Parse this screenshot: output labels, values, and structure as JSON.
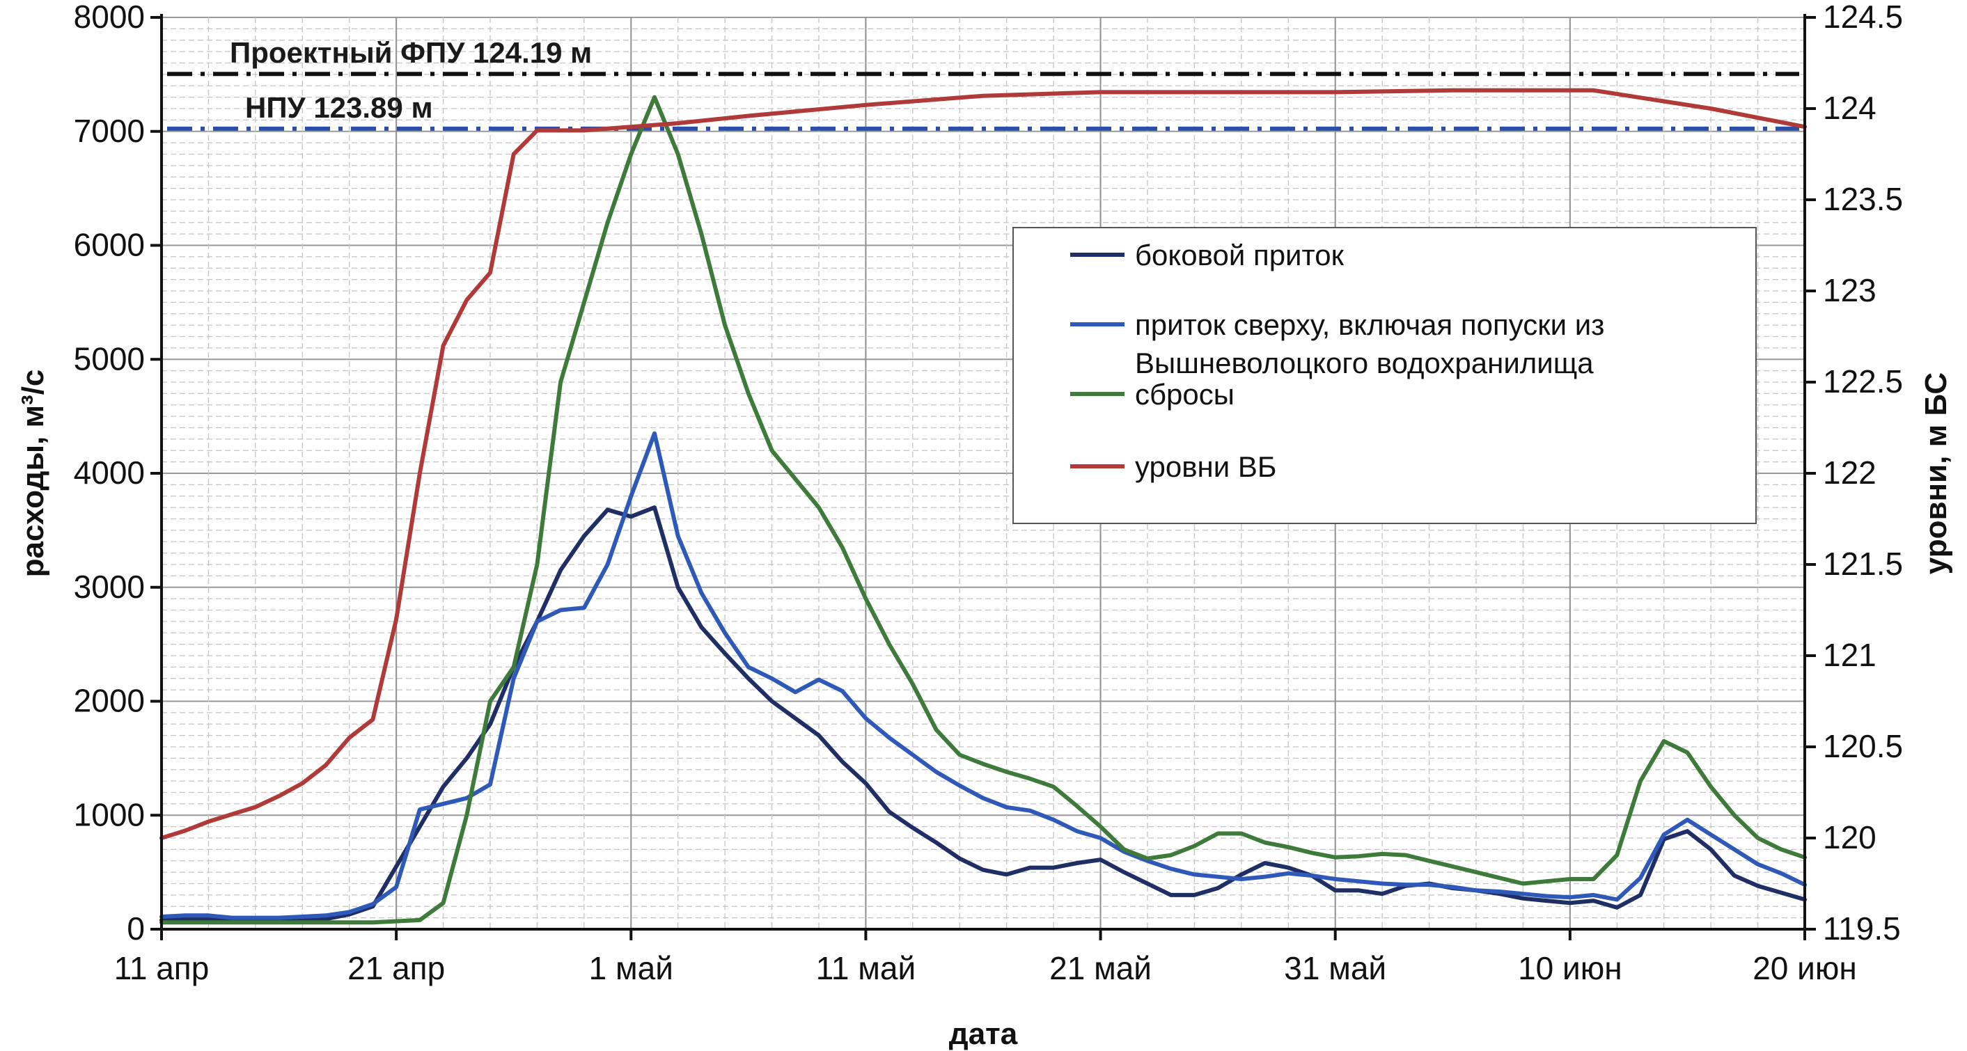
{
  "chart_data": {
    "type": "line",
    "x_axis": {
      "label": "дата",
      "range": [
        "2013-04-11",
        "2013-06-20"
      ],
      "tick_values": [
        "2013-04-11",
        "2013-04-21",
        "2013-05-01",
        "2013-05-11",
        "2013-05-21",
        "2013-05-31",
        "2013-06-10",
        "2013-06-20"
      ],
      "tick_labels": [
        "11 апр",
        "21 апр",
        "1 май",
        "11 май",
        "21 май",
        "31 май",
        "10 июн",
        "20 июн"
      ]
    },
    "y_left": {
      "label": "расходы, м³/с",
      "range": [
        0,
        8000
      ],
      "ticks": [
        0,
        1000,
        2000,
        3000,
        4000,
        5000,
        6000,
        7000,
        8000
      ]
    },
    "y_right": {
      "label": "уровни, м БС",
      "range": [
        119.5,
        124.5
      ],
      "ticks": [
        "119.5",
        "120",
        "120.5",
        "121",
        "121.5",
        "122",
        "122.5",
        "123",
        "123.5",
        "124",
        "124.5"
      ]
    },
    "grid": true,
    "legend_position": "right-center",
    "reference_lines": [
      {
        "label": "Проектный ФПУ 124.19 м",
        "value": 124.19,
        "axis": "right",
        "color": "#111111",
        "style": "dash-dot"
      },
      {
        "label": "НПУ 123.89 м",
        "value": 123.89,
        "axis": "right",
        "color": "#2b4fa8",
        "style": "dash-dot"
      }
    ],
    "series": [
      {
        "name": "боковой приток",
        "axis": "left",
        "color": "#1f2f66",
        "points": [
          [
            "2013-04-11",
            80
          ],
          [
            "2013-04-12",
            90
          ],
          [
            "2013-04-13",
            90
          ],
          [
            "2013-04-14",
            80
          ],
          [
            "2013-04-15",
            80
          ],
          [
            "2013-04-16",
            80
          ],
          [
            "2013-04-17",
            80
          ],
          [
            "2013-04-18",
            90
          ],
          [
            "2013-04-19",
            130
          ],
          [
            "2013-04-20",
            200
          ],
          [
            "2013-04-21",
            550
          ],
          [
            "2013-04-22",
            900
          ],
          [
            "2013-04-23",
            1250
          ],
          [
            "2013-04-24",
            1500
          ],
          [
            "2013-04-25",
            1800
          ],
          [
            "2013-04-26",
            2300
          ],
          [
            "2013-04-27",
            2700
          ],
          [
            "2013-04-28",
            3150
          ],
          [
            "2013-04-29",
            3450
          ],
          [
            "2013-04-30",
            3680
          ],
          [
            "2013-05-01",
            3620
          ],
          [
            "2013-05-02",
            3700
          ],
          [
            "2013-05-03",
            3000
          ],
          [
            "2013-05-04",
            2650
          ],
          [
            "2013-05-05",
            2420
          ],
          [
            "2013-05-06",
            2200
          ],
          [
            "2013-05-07",
            2000
          ],
          [
            "2013-05-08",
            1850
          ],
          [
            "2013-05-09",
            1700
          ],
          [
            "2013-05-10",
            1470
          ],
          [
            "2013-05-11",
            1280
          ],
          [
            "2013-05-12",
            1030
          ],
          [
            "2013-05-13",
            890
          ],
          [
            "2013-05-14",
            760
          ],
          [
            "2013-05-15",
            620
          ],
          [
            "2013-05-16",
            520
          ],
          [
            "2013-05-17",
            480
          ],
          [
            "2013-05-18",
            540
          ],
          [
            "2013-05-19",
            540
          ],
          [
            "2013-05-20",
            580
          ],
          [
            "2013-05-21",
            610
          ],
          [
            "2013-05-22",
            500
          ],
          [
            "2013-05-23",
            400
          ],
          [
            "2013-05-24",
            300
          ],
          [
            "2013-05-25",
            300
          ],
          [
            "2013-05-26",
            360
          ],
          [
            "2013-05-27",
            480
          ],
          [
            "2013-05-28",
            580
          ],
          [
            "2013-05-29",
            540
          ],
          [
            "2013-05-30",
            470
          ],
          [
            "2013-05-31",
            340
          ],
          [
            "2013-06-01",
            340
          ],
          [
            "2013-06-02",
            310
          ],
          [
            "2013-06-03",
            380
          ],
          [
            "2013-06-04",
            400
          ],
          [
            "2013-06-05",
            360
          ],
          [
            "2013-06-06",
            340
          ],
          [
            "2013-06-07",
            310
          ],
          [
            "2013-06-08",
            270
          ],
          [
            "2013-06-09",
            250
          ],
          [
            "2013-06-10",
            230
          ],
          [
            "2013-06-11",
            250
          ],
          [
            "2013-06-12",
            190
          ],
          [
            "2013-06-13",
            300
          ],
          [
            "2013-06-14",
            790
          ],
          [
            "2013-06-15",
            860
          ],
          [
            "2013-06-16",
            700
          ],
          [
            "2013-06-17",
            470
          ],
          [
            "2013-06-18",
            380
          ],
          [
            "2013-06-19",
            320
          ],
          [
            "2013-06-20",
            260
          ]
        ]
      },
      {
        "name": "приток сверху, включая попуски из Вышневолоцкого водохранилища",
        "axis": "left",
        "color": "#2f59b8",
        "points": [
          [
            "2013-04-11",
            110
          ],
          [
            "2013-04-12",
            120
          ],
          [
            "2013-04-13",
            120
          ],
          [
            "2013-04-14",
            100
          ],
          [
            "2013-04-15",
            100
          ],
          [
            "2013-04-16",
            100
          ],
          [
            "2013-04-17",
            110
          ],
          [
            "2013-04-18",
            120
          ],
          [
            "2013-04-19",
            150
          ],
          [
            "2013-04-20",
            220
          ],
          [
            "2013-04-21",
            370
          ],
          [
            "2013-04-22",
            1050
          ],
          [
            "2013-04-23",
            1100
          ],
          [
            "2013-04-24",
            1150
          ],
          [
            "2013-04-25",
            1270
          ],
          [
            "2013-04-26",
            2200
          ],
          [
            "2013-04-27",
            2700
          ],
          [
            "2013-04-28",
            2800
          ],
          [
            "2013-04-29",
            2820
          ],
          [
            "2013-04-30",
            3200
          ],
          [
            "2013-05-01",
            3800
          ],
          [
            "2013-05-02",
            4350
          ],
          [
            "2013-05-03",
            3450
          ],
          [
            "2013-05-04",
            2950
          ],
          [
            "2013-05-05",
            2600
          ],
          [
            "2013-05-06",
            2300
          ],
          [
            "2013-05-07",
            2200
          ],
          [
            "2013-05-08",
            2080
          ],
          [
            "2013-05-09",
            2190
          ],
          [
            "2013-05-10",
            2090
          ],
          [
            "2013-05-11",
            1850
          ],
          [
            "2013-05-12",
            1680
          ],
          [
            "2013-05-13",
            1530
          ],
          [
            "2013-05-14",
            1380
          ],
          [
            "2013-05-15",
            1260
          ],
          [
            "2013-05-16",
            1150
          ],
          [
            "2013-05-17",
            1070
          ],
          [
            "2013-05-18",
            1040
          ],
          [
            "2013-05-19",
            960
          ],
          [
            "2013-05-20",
            860
          ],
          [
            "2013-05-21",
            800
          ],
          [
            "2013-05-22",
            680
          ],
          [
            "2013-05-23",
            600
          ],
          [
            "2013-05-24",
            530
          ],
          [
            "2013-05-25",
            480
          ],
          [
            "2013-05-26",
            460
          ],
          [
            "2013-05-27",
            440
          ],
          [
            "2013-05-28",
            460
          ],
          [
            "2013-05-29",
            490
          ],
          [
            "2013-05-30",
            470
          ],
          [
            "2013-05-31",
            440
          ],
          [
            "2013-06-01",
            420
          ],
          [
            "2013-06-02",
            400
          ],
          [
            "2013-06-03",
            390
          ],
          [
            "2013-06-04",
            390
          ],
          [
            "2013-06-05",
            370
          ],
          [
            "2013-06-06",
            340
          ],
          [
            "2013-06-07",
            330
          ],
          [
            "2013-06-08",
            310
          ],
          [
            "2013-06-09",
            290
          ],
          [
            "2013-06-10",
            280
          ],
          [
            "2013-06-11",
            300
          ],
          [
            "2013-06-12",
            260
          ],
          [
            "2013-06-13",
            450
          ],
          [
            "2013-06-14",
            830
          ],
          [
            "2013-06-15",
            960
          ],
          [
            "2013-06-16",
            830
          ],
          [
            "2013-06-17",
            700
          ],
          [
            "2013-06-18",
            570
          ],
          [
            "2013-06-19",
            490
          ],
          [
            "2013-06-20",
            390
          ]
        ]
      },
      {
        "name": "сбросы",
        "axis": "left",
        "color": "#3e7a3a",
        "points": [
          [
            "2013-04-11",
            60
          ],
          [
            "2013-04-15",
            60
          ],
          [
            "2013-04-20",
            60
          ],
          [
            "2013-04-22",
            80
          ],
          [
            "2013-04-23",
            230
          ],
          [
            "2013-04-24",
            1000
          ],
          [
            "2013-04-25",
            2000
          ],
          [
            "2013-04-26",
            2300
          ],
          [
            "2013-04-27",
            3200
          ],
          [
            "2013-04-28",
            4800
          ],
          [
            "2013-04-29",
            5500
          ],
          [
            "2013-04-30",
            6200
          ],
          [
            "2013-05-01",
            6800
          ],
          [
            "2013-05-02",
            7300
          ],
          [
            "2013-05-03",
            6800
          ],
          [
            "2013-05-04",
            6100
          ],
          [
            "2013-05-05",
            5300
          ],
          [
            "2013-05-06",
            4700
          ],
          [
            "2013-05-07",
            4200
          ],
          [
            "2013-05-08",
            3950
          ],
          [
            "2013-05-09",
            3700
          ],
          [
            "2013-05-10",
            3350
          ],
          [
            "2013-05-11",
            2900
          ],
          [
            "2013-05-12",
            2500
          ],
          [
            "2013-05-13",
            2150
          ],
          [
            "2013-05-14",
            1750
          ],
          [
            "2013-05-15",
            1530
          ],
          [
            "2013-05-16",
            1450
          ],
          [
            "2013-05-17",
            1380
          ],
          [
            "2013-05-18",
            1320
          ],
          [
            "2013-05-19",
            1250
          ],
          [
            "2013-05-20",
            1080
          ],
          [
            "2013-05-21",
            900
          ],
          [
            "2013-05-22",
            700
          ],
          [
            "2013-05-23",
            620
          ],
          [
            "2013-05-24",
            650
          ],
          [
            "2013-05-25",
            730
          ],
          [
            "2013-05-26",
            840
          ],
          [
            "2013-05-27",
            840
          ],
          [
            "2013-05-28",
            760
          ],
          [
            "2013-05-29",
            720
          ],
          [
            "2013-05-30",
            670
          ],
          [
            "2013-05-31",
            630
          ],
          [
            "2013-06-01",
            640
          ],
          [
            "2013-06-02",
            660
          ],
          [
            "2013-06-03",
            650
          ],
          [
            "2013-06-04",
            600
          ],
          [
            "2013-06-05",
            550
          ],
          [
            "2013-06-06",
            500
          ],
          [
            "2013-06-07",
            450
          ],
          [
            "2013-06-08",
            400
          ],
          [
            "2013-06-09",
            420
          ],
          [
            "2013-06-10",
            440
          ],
          [
            "2013-06-11",
            440
          ],
          [
            "2013-06-12",
            650
          ],
          [
            "2013-06-13",
            1300
          ],
          [
            "2013-06-14",
            1650
          ],
          [
            "2013-06-15",
            1550
          ],
          [
            "2013-06-16",
            1250
          ],
          [
            "2013-06-17",
            1000
          ],
          [
            "2013-06-18",
            800
          ],
          [
            "2013-06-19",
            700
          ],
          [
            "2013-06-20",
            630
          ]
        ]
      },
      {
        "name": "уровни ВБ",
        "axis": "right",
        "color": "#b03a37",
        "points": [
          [
            "2013-04-11",
            120.0
          ],
          [
            "2013-04-12",
            120.04
          ],
          [
            "2013-04-13",
            120.09
          ],
          [
            "2013-04-14",
            120.13
          ],
          [
            "2013-04-15",
            120.17
          ],
          [
            "2013-04-16",
            120.23
          ],
          [
            "2013-04-17",
            120.3
          ],
          [
            "2013-04-18",
            120.4
          ],
          [
            "2013-04-19",
            120.55
          ],
          [
            "2013-04-20",
            120.65
          ],
          [
            "2013-04-21",
            121.2
          ],
          [
            "2013-04-22",
            122.0
          ],
          [
            "2013-04-23",
            122.7
          ],
          [
            "2013-04-24",
            122.95
          ],
          [
            "2013-04-25",
            123.1
          ],
          [
            "2013-04-26",
            123.75
          ],
          [
            "2013-04-27",
            123.88
          ],
          [
            "2013-04-28",
            123.88
          ],
          [
            "2013-04-29",
            123.88
          ],
          [
            "2013-04-30",
            123.89
          ],
          [
            "2013-05-01",
            123.9
          ],
          [
            "2013-05-03",
            123.92
          ],
          [
            "2013-05-06",
            123.96
          ],
          [
            "2013-05-11",
            124.02
          ],
          [
            "2013-05-16",
            124.07
          ],
          [
            "2013-05-21",
            124.09
          ],
          [
            "2013-05-31",
            124.09
          ],
          [
            "2013-06-05",
            124.1
          ],
          [
            "2013-06-11",
            124.1
          ],
          [
            "2013-06-13",
            124.06
          ],
          [
            "2013-06-16",
            124.0
          ],
          [
            "2013-06-20",
            123.9
          ]
        ]
      }
    ]
  }
}
